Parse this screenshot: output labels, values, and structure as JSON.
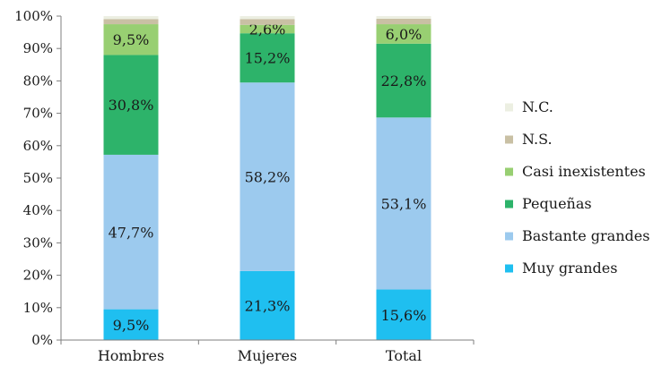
{
  "chart_data": {
    "type": "bar",
    "stacked": true,
    "percent_stacked": true,
    "categories": [
      "Hombres",
      "Mujeres",
      "Total"
    ],
    "series": [
      {
        "name": "Muy grandes",
        "color": "#1fbff0",
        "values": [
          9.5,
          21.3,
          15.6
        ],
        "labels": [
          "9,5%",
          "21,3%",
          "15,6%"
        ]
      },
      {
        "name": "Bastante grandes",
        "color": "#9ccaee",
        "values": [
          47.7,
          58.2,
          53.1
        ],
        "labels": [
          "47,7%",
          "58,2%",
          "53,1%"
        ]
      },
      {
        "name": "Pequeñas",
        "color": "#2db36a",
        "values": [
          30.8,
          15.2,
          22.8
        ],
        "labels": [
          "30,8%",
          "15,2%",
          "22,8%"
        ]
      },
      {
        "name": "Casi inexistentes",
        "color": "#98cf72",
        "values": [
          9.5,
          2.6,
          6.0
        ],
        "labels": [
          "9,5%",
          "2,6%",
          "6,0%"
        ]
      },
      {
        "name": "N.S.",
        "color": "#c9c0a4",
        "values": [
          1.6,
          1.8,
          1.7
        ],
        "labels": [
          "",
          "",
          ""
        ]
      },
      {
        "name": "N.C.",
        "color": "#ecefe2",
        "values": [
          0.9,
          0.9,
          0.8
        ],
        "labels": [
          "",
          "",
          ""
        ]
      }
    ],
    "ylim": [
      0,
      100
    ],
    "yticks": [
      0,
      10,
      20,
      30,
      40,
      50,
      60,
      70,
      80,
      90,
      100
    ],
    "ytick_labels": [
      "0%",
      "10%",
      "20%",
      "30%",
      "40%",
      "50%",
      "60%",
      "70%",
      "80%",
      "90%",
      "100%"
    ],
    "legend_position": "right",
    "legend_order": [
      "N.C.",
      "N.S.",
      "Casi inexistentes",
      "Pequeñas",
      "Bastante grandes",
      "Muy grandes"
    ],
    "grid": false
  }
}
